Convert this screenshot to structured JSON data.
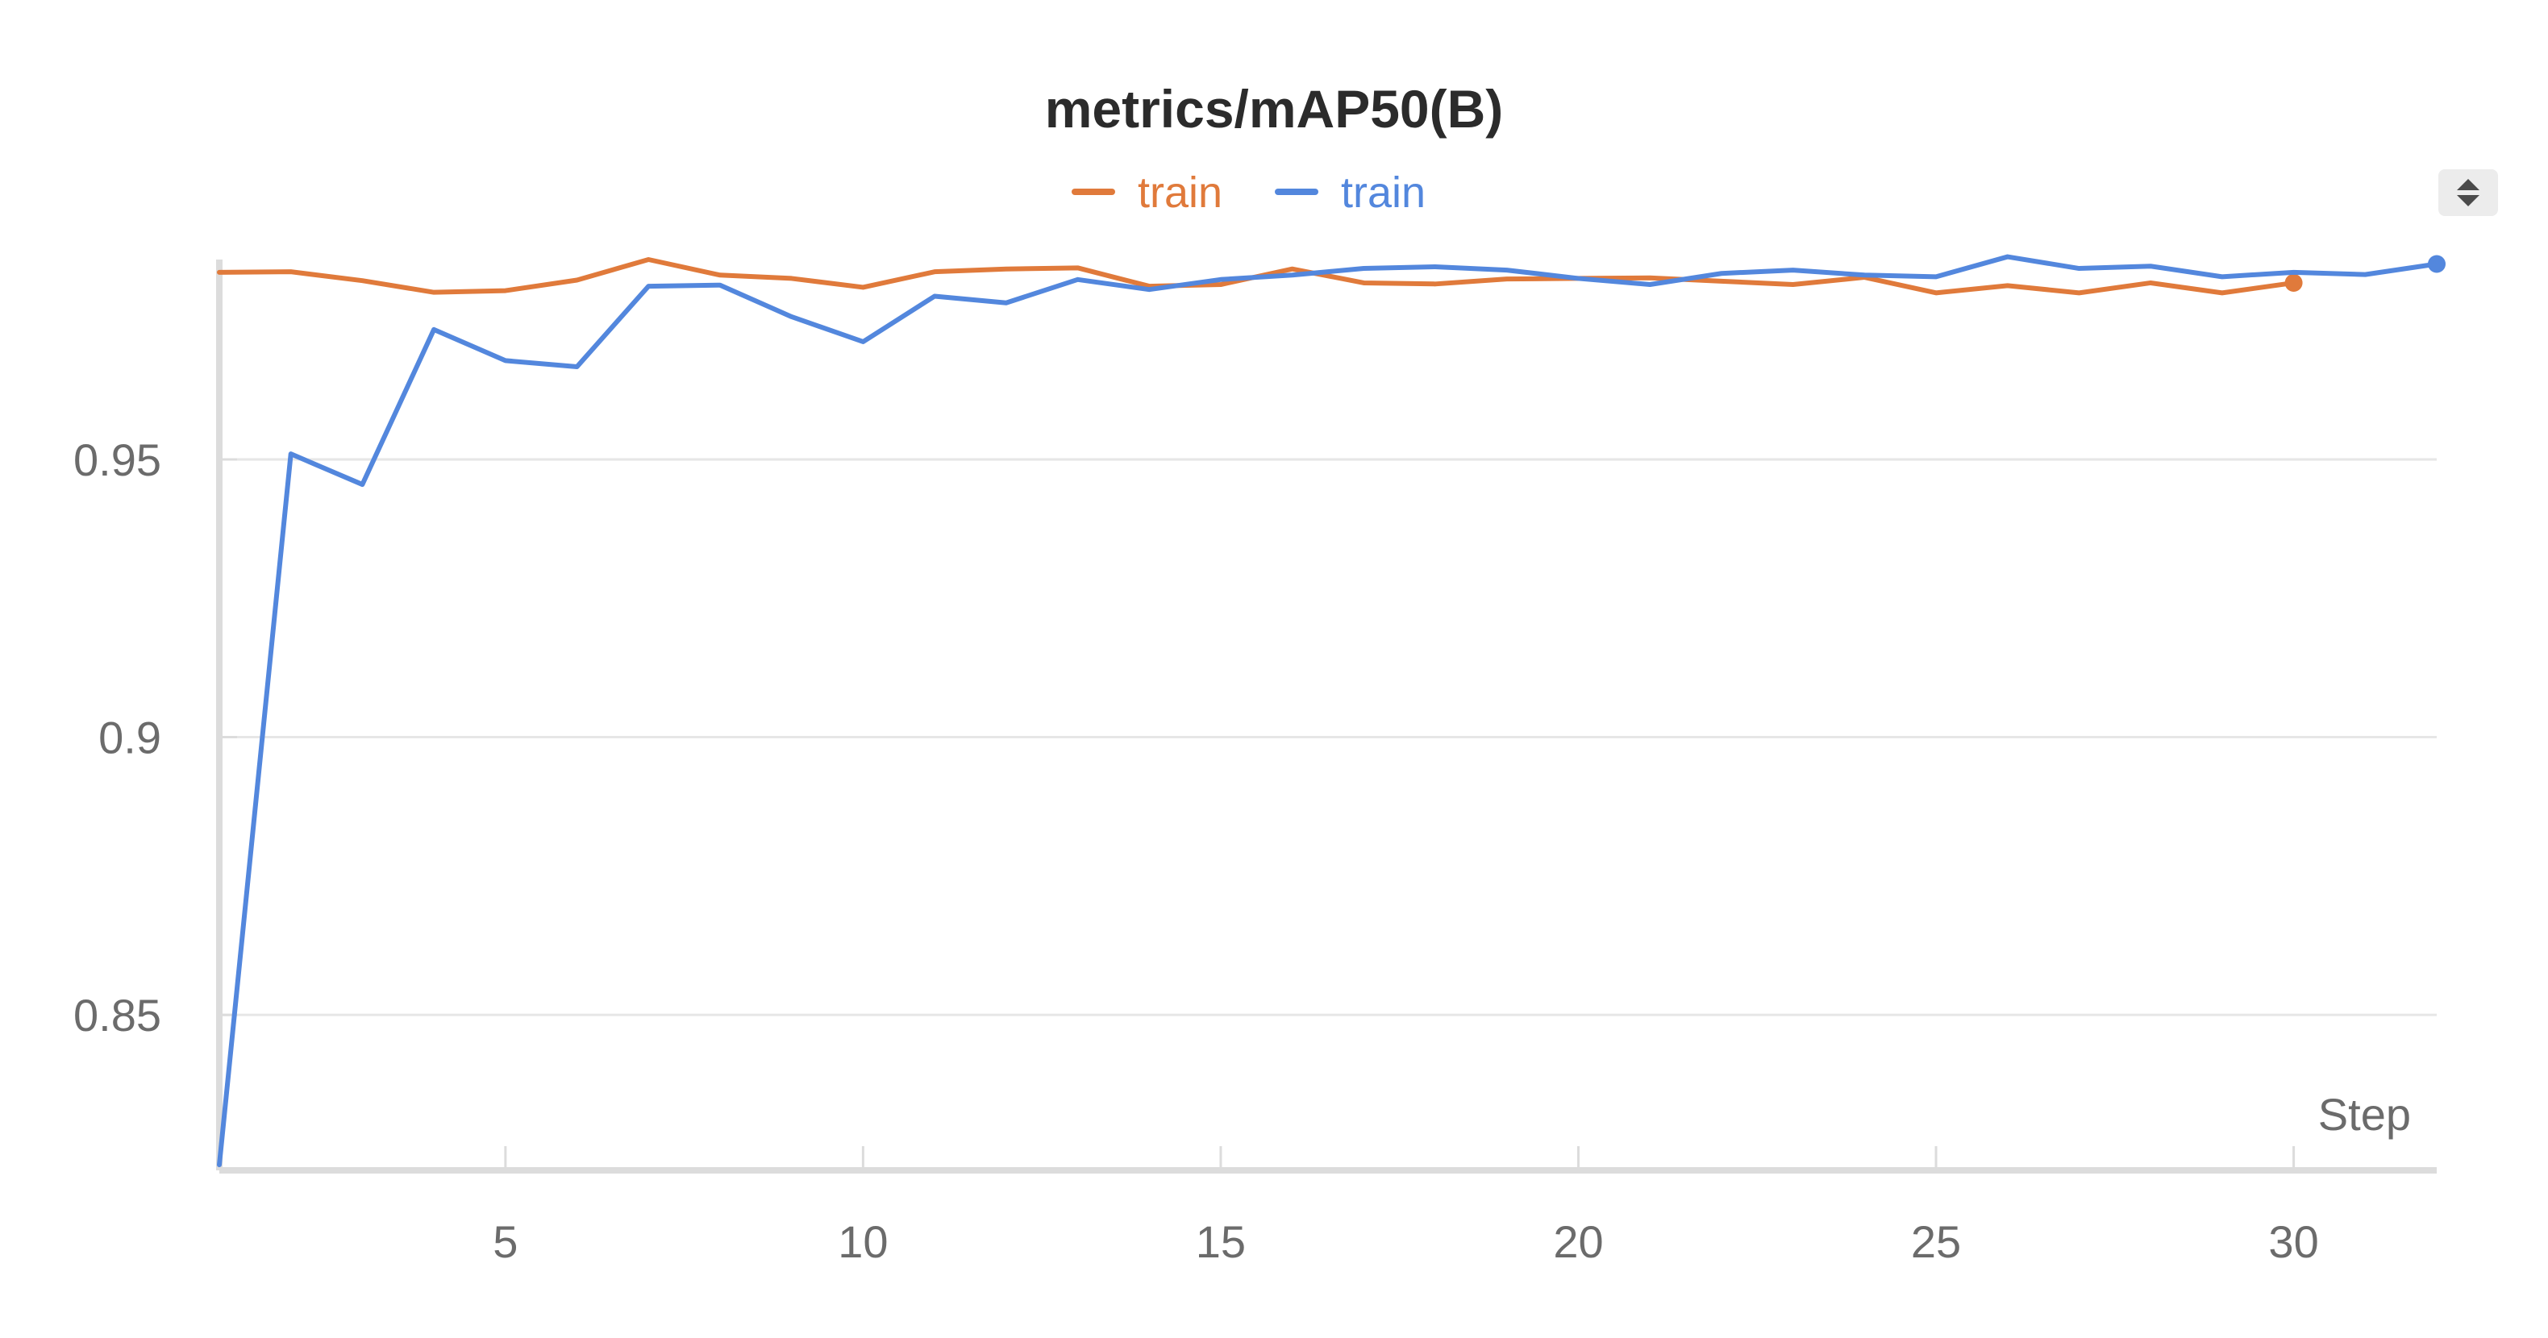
{
  "chart_data": {
    "type": "line",
    "title": "metrics/mAP50(B)",
    "xlabel": "Step",
    "ylabel": "",
    "xlim": [
      1,
      32
    ],
    "ylim": [
      0.822,
      0.986
    ],
    "x_ticks": [
      5,
      10,
      15,
      20,
      25,
      30
    ],
    "y_ticks": [
      0.85,
      0.9,
      0.95
    ],
    "y_tick_labels": [
      "0.85",
      "0.9",
      "0.95"
    ],
    "grid": "horizontal",
    "legend_position": "top-center",
    "series": [
      {
        "name": "train",
        "color": "#E07A3B",
        "x": [
          1,
          2,
          3,
          4,
          5,
          6,
          7,
          8,
          9,
          10,
          11,
          12,
          13,
          14,
          15,
          16,
          17,
          18,
          19,
          20,
          21,
          22,
          23,
          24,
          25,
          26,
          27,
          28,
          29,
          30
        ],
        "values": [
          0.9837,
          0.9838,
          0.9822,
          0.9801,
          0.9804,
          0.9823,
          0.986,
          0.9832,
          0.9826,
          0.981,
          0.9838,
          0.9843,
          0.9845,
          0.9812,
          0.9815,
          0.9843,
          0.9818,
          0.9816,
          0.9825,
          0.9826,
          0.9827,
          0.9821,
          0.9815,
          0.9828,
          0.98,
          0.9813,
          0.98,
          0.9818,
          0.98,
          0.9818
        ]
      },
      {
        "name": "train",
        "color": "#5387DD",
        "x": [
          1,
          2,
          3,
          4,
          5,
          6,
          7,
          8,
          9,
          10,
          11,
          12,
          13,
          14,
          15,
          16,
          17,
          18,
          19,
          20,
          21,
          22,
          23,
          24,
          25,
          26,
          27,
          28,
          29,
          30,
          31,
          32
        ],
        "values": [
          0.823,
          0.951,
          0.9455,
          0.9734,
          0.9678,
          0.9667,
          0.9812,
          0.9814,
          0.9757,
          0.9712,
          0.9794,
          0.9782,
          0.9824,
          0.9806,
          0.9824,
          0.9832,
          0.9844,
          0.9847,
          0.9841,
          0.9826,
          0.9815,
          0.9835,
          0.9841,
          0.9832,
          0.9829,
          0.9865,
          0.9844,
          0.9848,
          0.9829,
          0.9837,
          0.9833,
          0.9852
        ]
      }
    ]
  },
  "controls": {
    "sort_icon": "sort-up-down-icon"
  }
}
